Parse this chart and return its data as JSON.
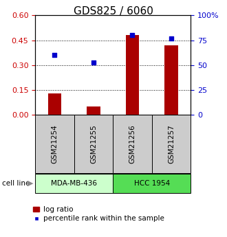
{
  "title": "GDS825 / 6060",
  "samples": [
    "GSM21254",
    "GSM21255",
    "GSM21256",
    "GSM21257"
  ],
  "log_ratio": [
    0.13,
    0.05,
    0.48,
    0.42
  ],
  "percentile_rank_pct": [
    60,
    53,
    80,
    77
  ],
  "left_yticks": [
    0,
    0.15,
    0.3,
    0.45,
    0.6
  ],
  "left_ylim": [
    0,
    0.6
  ],
  "right_ytick_labels": [
    "0",
    "25",
    "50",
    "75",
    "100%"
  ],
  "right_yticks": [
    0,
    25,
    50,
    75,
    100
  ],
  "right_ylim": [
    0,
    100
  ],
  "bar_color": "#aa0000",
  "dot_color": "#0000cc",
  "sample_box_color": "#cccccc",
  "cell_line_1_color": "#ccffcc",
  "cell_line_2_color": "#55dd55",
  "bar_width": 0.35,
  "left_tick_color": "#cc0000",
  "right_tick_color": "#0000cc",
  "title_fontsize": 11,
  "tick_fontsize": 8,
  "label_fontsize": 7.5,
  "legend_fontsize": 7.5,
  "cell_lines": [
    {
      "label": "MDA-MB-436",
      "start": 0,
      "end": 2,
      "color": "#ccffcc"
    },
    {
      "label": "HCC 1954",
      "start": 2,
      "end": 4,
      "color": "#55dd55"
    }
  ]
}
